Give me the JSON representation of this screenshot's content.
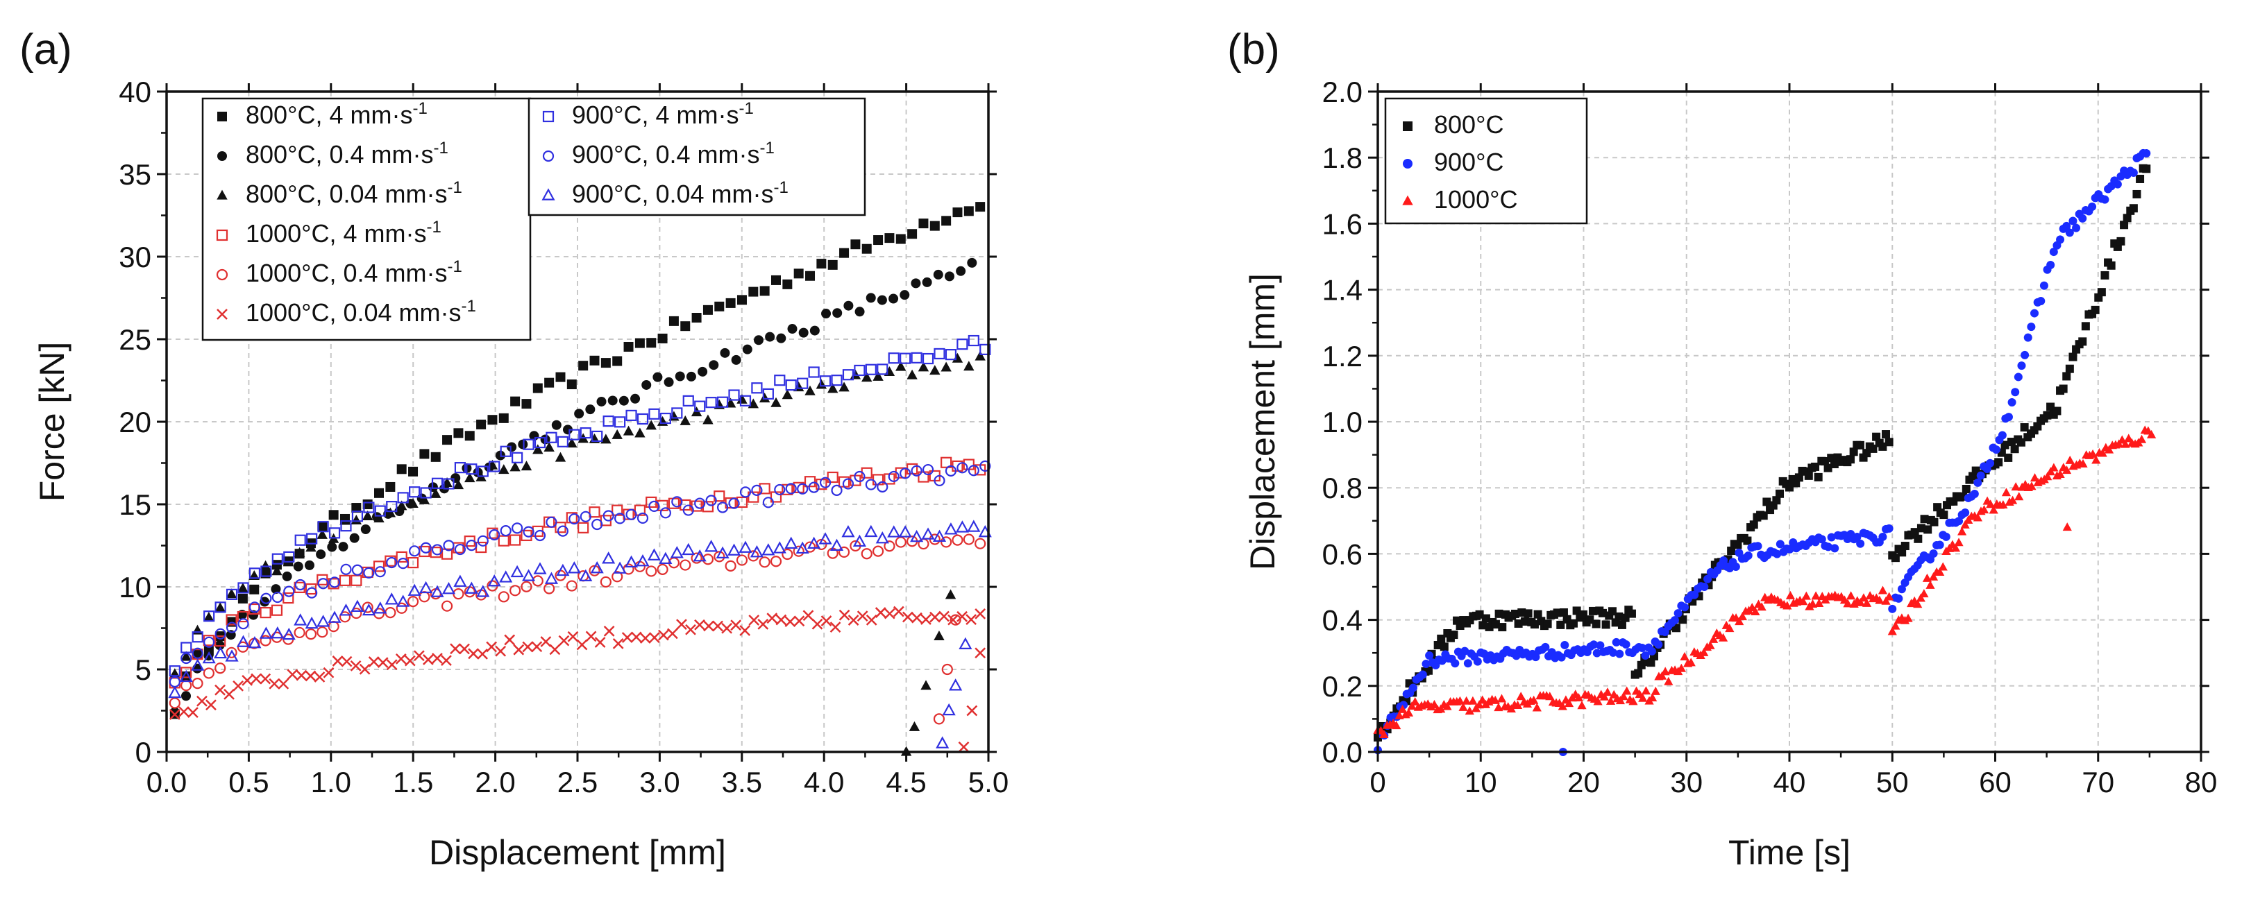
{
  "chart_data": [
    {
      "id": "a",
      "type": "scatter",
      "panel_label": "(a)",
      "xlabel": "Displacement [mm]",
      "ylabel": "Force [kN]",
      "xlim": [
        0,
        5
      ],
      "ylim": [
        0,
        40
      ],
      "xticks": [
        "0.0",
        "0.5",
        "1.0",
        "1.5",
        "2.0",
        "2.5",
        "3.0",
        "3.5",
        "4.0",
        "4.5",
        "5.0"
      ],
      "yticks": [
        "0",
        "5",
        "10",
        "15",
        "20",
        "25",
        "30",
        "35",
        "40"
      ],
      "grid": true,
      "legend_position": "top-left",
      "series": [
        {
          "name": "800°C, 4 mm·s",
          "sup": "-1",
          "color": "#111111",
          "marker": "square-filled",
          "curve": {
            "a": 13.8,
            "b": 0.55,
            "pow": 1.0,
            "end": 4.95,
            "n": 72,
            "start": 0.05
          }
        },
        {
          "name": "800°C, 0.4 mm·s",
          "sup": "-1",
          "color": "#111111",
          "marker": "circle-filled",
          "curve": {
            "a": 12.2,
            "b": 0.55,
            "pow": 1.0,
            "end": 4.9,
            "n": 72,
            "start": 0.05
          }
        },
        {
          "name": "800°C, 0.04 mm·s",
          "sup": "-1",
          "color": "#111111",
          "marker": "triangle-filled",
          "curve": {
            "a": 13.2,
            "b": 0.37,
            "pow": 1.0,
            "end": 4.95,
            "n": 72,
            "start": 0.05
          },
          "drop": [
            [
              4.5,
              0
            ],
            [
              4.55,
              1.5
            ],
            [
              4.62,
              4
            ],
            [
              4.7,
              7
            ],
            [
              4.77,
              9.5
            ]
          ]
        },
        {
          "name": "1000°C, 4 mm·s",
          "sup": "-1",
          "color": "#e03030",
          "marker": "square-open",
          "curve": {
            "a": 10.3,
            "b": 0.33,
            "pow": 1.0,
            "end": 4.95,
            "n": 72,
            "start": 0.05
          }
        },
        {
          "name": "1000°C, 0.4 mm·s",
          "sup": "-1",
          "color": "#e03030",
          "marker": "circle-open",
          "curve": {
            "a": 7.8,
            "b": 0.32,
            "pow": 1.0,
            "end": 4.95,
            "n": 72,
            "start": 0.05
          },
          "drop": [
            [
              4.7,
              2
            ],
            [
              4.75,
              5
            ],
            [
              4.8,
              8
            ]
          ]
        },
        {
          "name": "1000°C, 0.04 mm·s",
          "sup": "-1",
          "color": "#e03030",
          "marker": "x-mark",
          "curve": {
            "a": 5.0,
            "b": 0.33,
            "pow": 1.0,
            "end": 4.95,
            "n": 90,
            "start": 0.05
          },
          "drop": [
            [
              4.85,
              0.3
            ],
            [
              4.9,
              2.5
            ],
            [
              4.95,
              6
            ]
          ]
        },
        {
          "name": "900°C, 4 mm·s",
          "sup": "-1",
          "color": "#3030e0",
          "marker": "square-open",
          "curve": {
            "a": 13.6,
            "b": 0.37,
            "pow": 1.0,
            "end": 4.98,
            "n": 72,
            "start": 0.05
          }
        },
        {
          "name": "900°C, 0.4 mm·s",
          "sup": "-1",
          "color": "#3030e0",
          "marker": "circle-open",
          "curve": {
            "a": 10.4,
            "b": 0.31,
            "pow": 1.0,
            "end": 4.98,
            "n": 72,
            "start": 0.05
          }
        },
        {
          "name": "900°C, 0.04 mm·s",
          "sup": "-1",
          "color": "#3030e0",
          "marker": "triangle-open",
          "curve": {
            "a": 8.2,
            "b": 0.32,
            "pow": 1.0,
            "end": 4.98,
            "n": 72,
            "start": 0.05
          },
          "drop": [
            [
              4.72,
              0.5
            ],
            [
              4.76,
              2.5
            ],
            [
              4.8,
              4
            ],
            [
              4.86,
              6.5
            ]
          ]
        }
      ]
    },
    {
      "id": "b",
      "type": "scatter",
      "panel_label": "(b)",
      "xlabel": "Time [s]",
      "ylabel": "Displacement [mm]",
      "xlim": [
        0,
        80
      ],
      "ylim": [
        0,
        2.0
      ],
      "xticks": [
        "0",
        "10",
        "20",
        "30",
        "40",
        "50",
        "60",
        "70",
        "80"
      ],
      "yticks": [
        "0.0",
        "0.2",
        "0.4",
        "0.6",
        "0.8",
        "1.0",
        "1.2",
        "1.4",
        "1.6",
        "1.8",
        "2.0"
      ],
      "grid": true,
      "legend_position": "top-left",
      "series": [
        {
          "name": "800°C",
          "color": "#111111",
          "marker": "square-filled",
          "segments": [
            [
              0,
              0.05,
              8,
              0.4
            ],
            [
              8,
              0.4,
              25,
              0.41
            ],
            [
              25,
              0.22,
              29,
              0.4
            ],
            [
              29,
              0.4,
              40,
              0.82
            ],
            [
              40,
              0.82,
              50,
              0.95
            ],
            [
              50,
              0.6,
              60,
              0.88
            ],
            [
              60,
              0.88,
              66,
              1.05
            ],
            [
              66,
              1.05,
              75,
              1.8
            ]
          ],
          "scatter": 0.025
        },
        {
          "name": "900°C",
          "color": "#1a2cff",
          "marker": "circle-filled",
          "segments": [
            [
              0,
              0.02,
              5,
              0.28
            ],
            [
              5,
              0.28,
              26,
              0.32
            ],
            [
              26,
              0.3,
              33,
              0.55
            ],
            [
              33,
              0.55,
              36,
              0.6
            ],
            [
              36,
              0.6,
              50,
              0.66
            ],
            [
              50,
              0.45,
              58,
              0.78
            ],
            [
              58,
              0.78,
              61,
              1.0
            ],
            [
              61,
              1.0,
              66,
              1.55
            ],
            [
              66,
              1.55,
              75,
              1.82
            ]
          ],
          "scatter": 0.02
        },
        {
          "name": "1000°C",
          "color": "#ff1a1a",
          "marker": "triangle-filled",
          "segments": [
            [
              0,
              0.05,
              3,
              0.13
            ],
            [
              3,
              0.13,
              27,
              0.17
            ],
            [
              27,
              0.2,
              37,
              0.45
            ],
            [
              37,
              0.45,
              50,
              0.47
            ],
            [
              50,
              0.35,
              58,
              0.72
            ],
            [
              58,
              0.72,
              66,
              0.85
            ],
            [
              66,
              0.85,
              75.5,
              0.97
            ]
          ],
          "scatter": 0.02
        }
      ]
    }
  ]
}
